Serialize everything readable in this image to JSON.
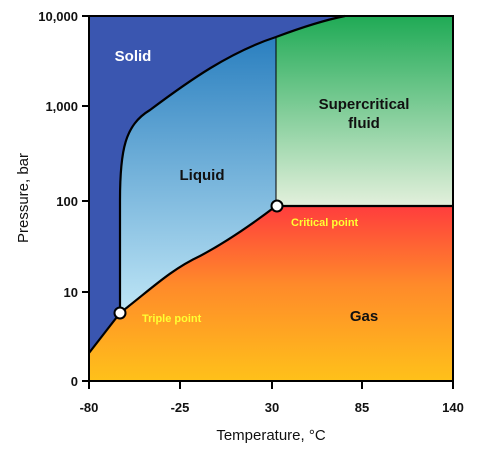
{
  "axes": {
    "x_title": "Temperature, °C",
    "y_title": "Pressure, bar",
    "x_ticks": [
      "-80",
      "-25",
      "30",
      "85",
      "140"
    ],
    "y_ticks": [
      "10,000",
      "1,000",
      "100",
      "10",
      "0"
    ]
  },
  "regions": {
    "solid": "Solid",
    "liquid": "Liquid",
    "supercritical_line1": "Supercritical",
    "supercritical_line2": "fluid",
    "gas": "Gas"
  },
  "points": {
    "triple": "Triple point",
    "critical": "Critical point"
  },
  "colors": {
    "solid": "#3a56b0",
    "liquid_top": "#2a7fbf",
    "liquid_bottom": "#bfe6f6",
    "supercritical_top": "#1faa55",
    "supercritical_bottom": "#e3f0dc",
    "gas_top": "#ff3d3d",
    "gas_bottom": "#ffc11a",
    "point_label": "#ffff33"
  }
}
